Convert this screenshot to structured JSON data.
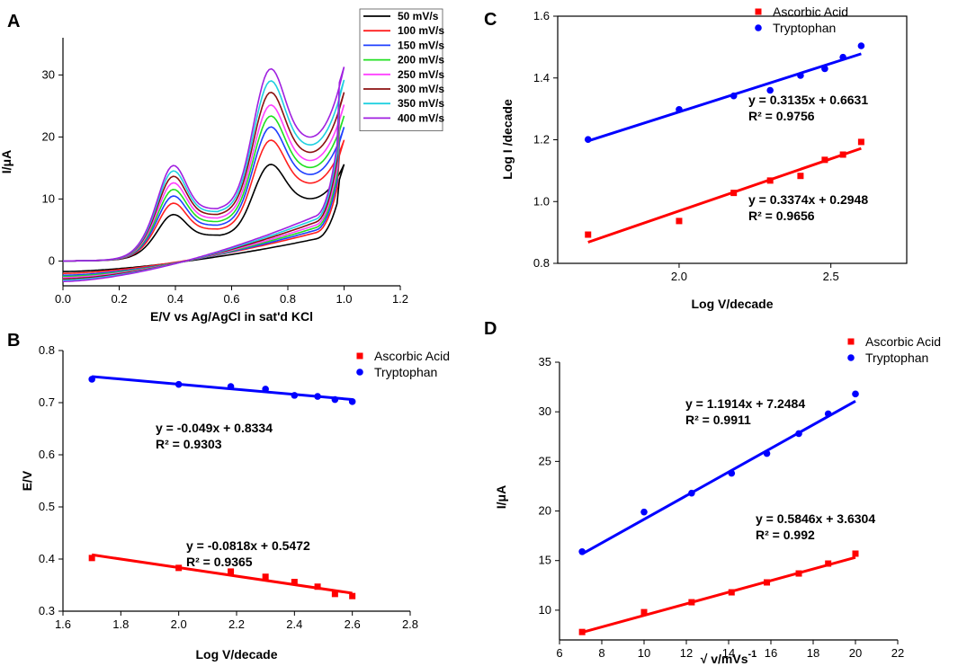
{
  "chart_data": [
    {
      "panel": "A",
      "type": "line",
      "title": "",
      "xlabel": "E/V vs Ag/AgCl in sat'd KCl",
      "ylabel": "I/μA",
      "xlim": [
        0.0,
        1.2
      ],
      "ylim": [
        -4,
        36
      ],
      "xticks": [
        0.0,
        0.2,
        0.4,
        0.6,
        0.8,
        1.0,
        1.2
      ],
      "yticks": [
        0,
        10,
        20,
        30
      ],
      "legend_position": "top-right",
      "series": [
        {
          "name": "50 mV/s",
          "color": "#000000",
          "peak1": 7.6,
          "peak2": 16.0,
          "end": 15.6,
          "base": -1.7
        },
        {
          "name": "100 mV/s",
          "color": "#ff2020",
          "peak1": 9.5,
          "peak2": 20.0,
          "end": 19.5,
          "base": -2.0
        },
        {
          "name": "150 mV/s",
          "color": "#2040ff",
          "peak1": 10.7,
          "peak2": 22.2,
          "end": 21.6,
          "base": -2.3
        },
        {
          "name": "200 mV/s",
          "color": "#20e020",
          "peak1": 11.8,
          "peak2": 24.0,
          "end": 23.4,
          "base": -2.5
        },
        {
          "name": "250 mV/s",
          "color": "#ff40ff",
          "peak1": 12.9,
          "peak2": 25.8,
          "end": 25.2,
          "base": -2.7
        },
        {
          "name": "300 mV/s",
          "color": "#8b1010",
          "peak1": 14.0,
          "peak2": 27.9,
          "end": 27.2,
          "base": -2.9
        },
        {
          "name": "350 mV/s",
          "color": "#20d0e0",
          "peak1": 14.9,
          "peak2": 29.8,
          "end": 29.2,
          "base": -3.1
        },
        {
          "name": "400 mV/s",
          "color": "#a020e0",
          "peak1": 15.8,
          "peak2": 31.8,
          "end": 31.3,
          "base": -3.3
        }
      ]
    },
    {
      "panel": "B",
      "type": "scatter",
      "xlabel": "Log V/decade",
      "ylabel": "E/V",
      "xlim": [
        1.6,
        2.8
      ],
      "ylim": [
        0.3,
        0.8
      ],
      "xticks": [
        1.6,
        1.8,
        2.0,
        2.2,
        2.4,
        2.6,
        2.8
      ],
      "yticks": [
        0.3,
        0.4,
        0.5,
        0.6,
        0.7,
        0.8
      ],
      "legend_position": "top-right",
      "series": [
        {
          "name": "Ascorbic Acid",
          "color": "#ff0000",
          "marker": "square",
          "x": [
            1.7,
            2.0,
            2.18,
            2.3,
            2.4,
            2.48,
            2.54,
            2.6
          ],
          "y": [
            0.402,
            0.383,
            0.376,
            0.366,
            0.356,
            0.347,
            0.333,
            0.329
          ],
          "fit": {
            "slope": -0.0818,
            "intercept": 0.5472,
            "equation": "y = -0.0818x + 0.5472",
            "r2": "R² = 0.9365"
          }
        },
        {
          "name": "Tryptophan",
          "color": "#0000ff",
          "marker": "circle",
          "x": [
            1.7,
            2.0,
            2.18,
            2.3,
            2.4,
            2.48,
            2.54,
            2.6
          ],
          "y": [
            0.745,
            0.735,
            0.731,
            0.726,
            0.714,
            0.712,
            0.706,
            0.702
          ],
          "fit": {
            "slope": -0.049,
            "intercept": 0.8334,
            "equation": "y = -0.049x + 0.8334",
            "r2": "R² = 0.9303"
          }
        }
      ]
    },
    {
      "panel": "C",
      "type": "scatter",
      "xlabel": "Log V/decade",
      "ylabel": "Log I /decade",
      "xlim": [
        1.6,
        2.75
      ],
      "ylim": [
        0.8,
        1.6
      ],
      "xticks": [
        2.0,
        2.5
      ],
      "yticks": [
        0.8,
        1.0,
        1.2,
        1.4,
        1.6
      ],
      "legend_position": "top",
      "series": [
        {
          "name": "Ascorbic Acid",
          "color": "#ff0000",
          "marker": "square",
          "x": [
            1.7,
            2.0,
            2.18,
            2.3,
            2.4,
            2.48,
            2.54,
            2.6
          ],
          "y": [
            0.893,
            0.937,
            1.028,
            1.068,
            1.083,
            1.135,
            1.152,
            1.193
          ],
          "fit": {
            "slope": 0.3374,
            "intercept": 0.2948,
            "equation": "y = 0.3374x + 0.2948",
            "r2": "R² = 0.9656"
          }
        },
        {
          "name": "Tryptophan",
          "color": "#0000ff",
          "marker": "circle",
          "x": [
            1.7,
            2.0,
            2.18,
            2.3,
            2.4,
            2.48,
            2.54,
            2.6
          ],
          "y": [
            1.201,
            1.298,
            1.342,
            1.36,
            1.408,
            1.43,
            1.467,
            1.504
          ],
          "fit": {
            "slope": 0.3135,
            "intercept": 0.6631,
            "equation": "y = 0.3135x + 0.6631",
            "r2": "R² = 0.9756"
          }
        }
      ]
    },
    {
      "panel": "D",
      "type": "scatter",
      "xlabel": "√ v/mVs",
      "xlabel_sup": "-1",
      "ylabel": "I/μA",
      "xlim": [
        6,
        22
      ],
      "ylim": [
        7,
        35
      ],
      "xticks": [
        6,
        8,
        10,
        12,
        14,
        16,
        18,
        20,
        22
      ],
      "yticks": [
        10,
        15,
        20,
        25,
        30,
        35
      ],
      "legend_position": "top-right",
      "series": [
        {
          "name": "Ascorbic Acid",
          "color": "#ff0000",
          "marker": "square",
          "x": [
            7.07,
            10.0,
            12.25,
            14.14,
            15.81,
            17.32,
            18.71,
            20.0
          ],
          "y": [
            7.8,
            9.8,
            10.8,
            11.8,
            12.8,
            13.7,
            14.7,
            15.7
          ],
          "fit": {
            "slope": 0.5846,
            "intercept": 3.6304,
            "equation": "y = 0.5846x + 3.6304",
            "r2": "R² = 0.992"
          }
        },
        {
          "name": "Tryptophan",
          "color": "#0000ff",
          "marker": "circle",
          "x": [
            7.07,
            10.0,
            12.25,
            14.14,
            15.81,
            17.32,
            18.71,
            20.0
          ],
          "y": [
            15.9,
            19.9,
            21.8,
            23.8,
            25.8,
            27.8,
            29.8,
            31.8
          ],
          "fit": {
            "slope": 1.1914,
            "intercept": 7.2484,
            "equation": "y = 1.1914x + 7.2484",
            "r2": "R² = 0.9911"
          }
        }
      ]
    }
  ],
  "panel_labels": [
    "A",
    "B",
    "C",
    "D"
  ]
}
